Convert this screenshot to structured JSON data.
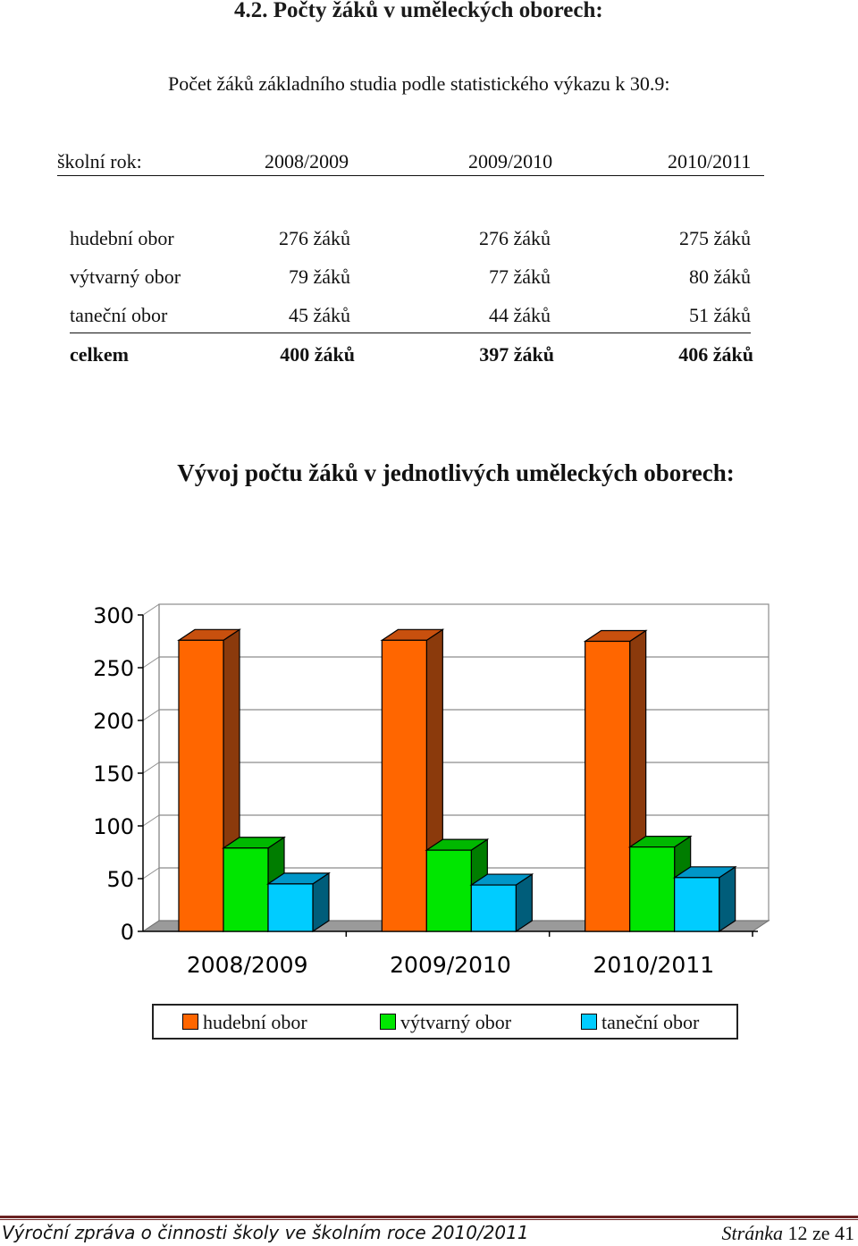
{
  "heading": "4.2.  Počty žáků v uměleckých oborech:",
  "subtitle": "Počet žáků základního studia podle statistického výkazu k 30.9:",
  "table": {
    "header": [
      "školní rok:",
      "2008/2009",
      "2009/2010",
      "2010/2011"
    ],
    "rows": [
      {
        "label": "hudební obor",
        "values": [
          "276 žáků",
          "276 žáků",
          "275 žáků"
        ]
      },
      {
        "label": "výtvarný obor",
        "values": [
          "79 žáků",
          "77 žáků",
          "80 žáků"
        ]
      },
      {
        "label": "taneční obor",
        "values": [
          "45 žáků",
          "44 žáků",
          "51 žáků"
        ]
      },
      {
        "label": "celkem",
        "values": [
          "400 žáků",
          "397 žáků",
          "406 žáků"
        ]
      }
    ]
  },
  "chart_title": "Vývoj počtu žáků v jednotlivých uměleckých oborech:",
  "chart_data": {
    "type": "bar",
    "title": "",
    "categories": [
      "2008/2009",
      "2009/2010",
      "2010/2011"
    ],
    "series": [
      {
        "name": "hudební obor",
        "values": [
          276,
          276,
          275
        ],
        "color": "#ff6600",
        "side": "#8b3a0c",
        "top": "#c8500e"
      },
      {
        "name": "výtvarný obor",
        "values": [
          79,
          77,
          80
        ],
        "color": "#00e600",
        "side": "#007d00",
        "top": "#00b800"
      },
      {
        "name": "taneční obor",
        "values": [
          45,
          44,
          51
        ],
        "color": "#00ccff",
        "side": "#005d7a",
        "top": "#0096c8"
      }
    ],
    "yticks": [
      "0",
      "50",
      "100",
      "150",
      "200",
      "250",
      "300"
    ],
    "ylim": [
      0,
      300
    ],
    "grid": true,
    "legend": "bottom",
    "three_d": true
  },
  "footer": {
    "left": "Výroční zpráva o činnosti školy ve školním roce 2010/2011",
    "page_word": "Stránka",
    "page_num": "12",
    "of_word": "ze",
    "page_total": "41"
  }
}
